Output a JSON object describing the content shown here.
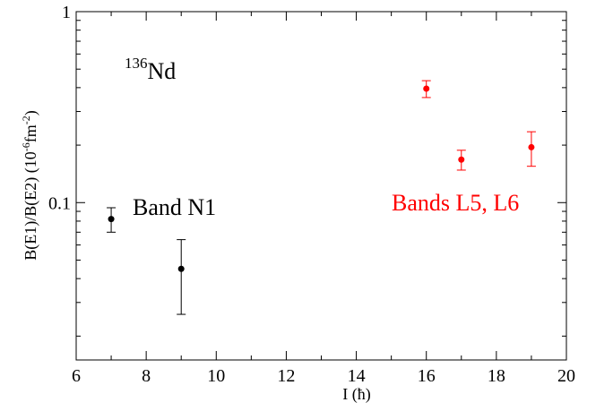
{
  "chart_data": {
    "type": "scatter",
    "xlabel": "I (ħ)",
    "ylabel": [
      "B(E1)/B(E2)  (10",
      "-6",
      "fm",
      "-2",
      ")"
    ],
    "nucleus_mass": "136",
    "nucleus": "Nd",
    "xlim": [
      6,
      20
    ],
    "xticks": [
      6,
      8,
      10,
      12,
      14,
      16,
      18,
      20
    ],
    "xminorticks": [
      7,
      9,
      11,
      13,
      15,
      17,
      19
    ],
    "ylim": [
      0.015,
      1
    ],
    "yscale": "log",
    "yticks": [
      0.1,
      1
    ],
    "yminorticks": [
      0.02,
      0.03,
      0.04,
      0.05,
      0.06,
      0.07,
      0.08,
      0.09,
      0.2,
      0.3,
      0.4,
      0.5,
      0.6,
      0.7,
      0.8,
      0.9
    ],
    "series": [
      {
        "name": "Band N1",
        "color": "#000000",
        "x": [
          7,
          9
        ],
        "values": [
          0.082,
          0.045
        ],
        "errors": [
          0.012,
          0.019
        ]
      },
      {
        "name": "Bands L5, L6",
        "color": "#ff0000",
        "x": [
          16,
          17,
          19
        ],
        "values": [
          0.395,
          0.168,
          0.195
        ],
        "errors": [
          0.04,
          0.02,
          0.04
        ]
      }
    ]
  }
}
